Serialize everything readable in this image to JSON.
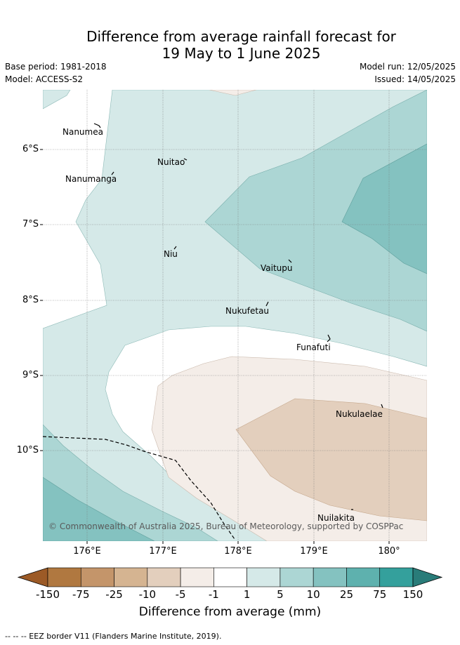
{
  "title": {
    "line1": "Difference from average rainfall forecast for",
    "line2": "19 May to 1 June 2025"
  },
  "meta": {
    "base_period": "Base period: 1981-2018",
    "model": "Model: ACCESS-S2",
    "model_run": "Model run: 12/05/2025",
    "issued": "Issued: 14/05/2025"
  },
  "map": {
    "lat_labels": [
      "6°S",
      "7°S",
      "8°S",
      "9°S",
      "10°S"
    ],
    "lon_labels": [
      "176°E",
      "177°E",
      "178°E",
      "179°E",
      "180°"
    ],
    "islands": [
      "Nanumea",
      "Nuitao",
      "Nanumanga",
      "Niu",
      "Vaitupu",
      "Nukufetau",
      "Funafuti",
      "Nukulaelae",
      "Nuilakita"
    ],
    "copyright": "© Commonwealth of Australia 2025, Bureau of Meteorology, supported by COSPPac"
  },
  "colorbar": {
    "ticks": [
      "-150",
      "-75",
      "-25",
      "-10",
      "-5",
      "-1",
      "1",
      "5",
      "10",
      "25",
      "75",
      "150"
    ],
    "colors": [
      "#9c5a26",
      "#b07840",
      "#c4956a",
      "#d5b491",
      "#e3cfbd",
      "#f4ede8",
      "#ffffff",
      "#d5e9e8",
      "#acd6d4",
      "#84c2c0",
      "#5eb1ae",
      "#34a09c",
      "#297c79"
    ],
    "label": "Difference from average (mm)"
  },
  "legend": {
    "eez": "--  --  -- EEZ border V11 (Flanders Marine Institute, 2019)."
  }
}
